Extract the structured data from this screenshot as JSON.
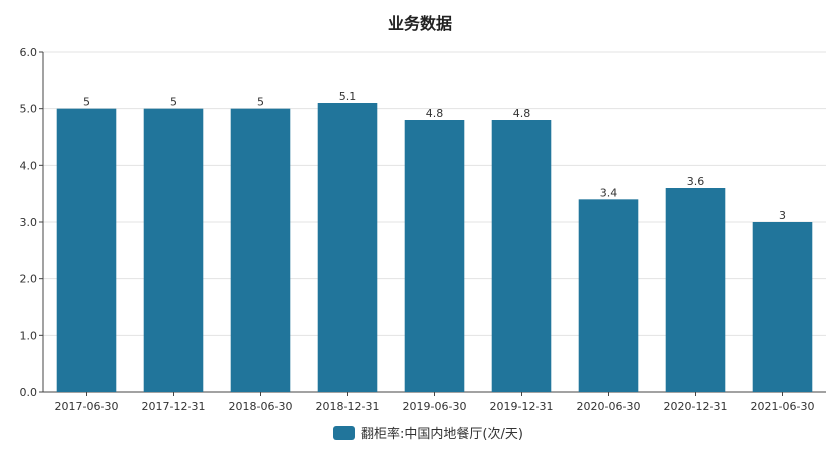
{
  "chart_data": {
    "type": "bar",
    "title": "业务数据",
    "categories": [
      "2017-06-30",
      "2017-12-31",
      "2018-06-30",
      "2018-12-31",
      "2019-06-30",
      "2019-12-31",
      "2020-06-30",
      "2020-12-31",
      "2021-06-30"
    ],
    "series": [
      {
        "name": "翻柜率:中国内地餐厅(次/天)",
        "values": [
          5,
          5,
          5,
          5.1,
          4.8,
          4.8,
          3.4,
          3.6,
          3
        ],
        "labels": [
          "5",
          "5",
          "5",
          "5.1",
          "4.8",
          "4.8",
          "3.4",
          "3.6",
          "3"
        ],
        "color": "#21759b"
      }
    ],
    "ylim": [
      0,
      6
    ],
    "yticks": [
      "0.0",
      "1.0",
      "2.0",
      "3.0",
      "4.0",
      "5.0",
      "6.0"
    ],
    "grid": true,
    "legend_position": "bottom-center"
  }
}
